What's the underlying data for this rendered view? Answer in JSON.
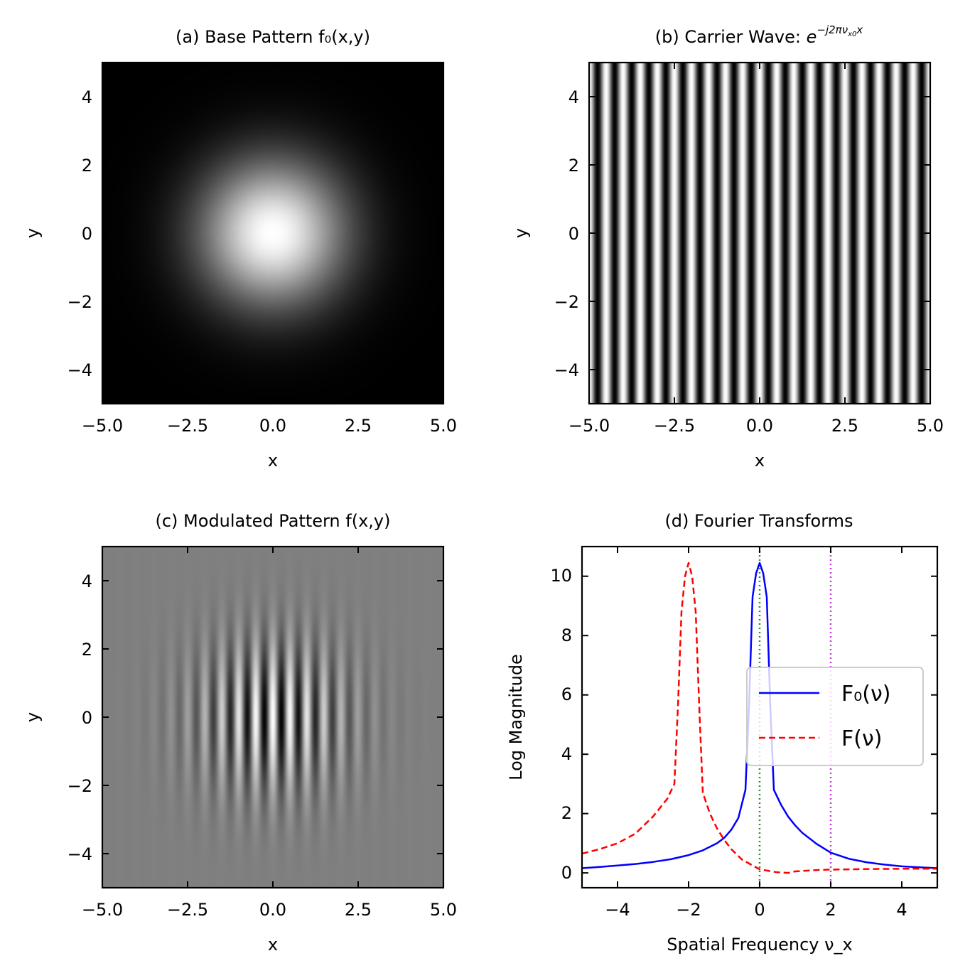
{
  "chart_data": [
    {
      "id": "a",
      "type": "heatmap",
      "title": "(a) Base Pattern f₀(x,y)",
      "xlabel": "x",
      "ylabel": "y",
      "xlim": [
        -5,
        5
      ],
      "ylim": [
        -5,
        5
      ],
      "x_ticks": [
        -5.0,
        -2.5,
        0.0,
        2.5,
        5.0
      ],
      "x_tick_labels": [
        "−5.0",
        "−2.5",
        "0.0",
        "2.5",
        "5.0"
      ],
      "y_ticks": [
        4,
        2,
        0,
        -2,
        -4
      ],
      "y_tick_labels": [
        "4",
        "2",
        "0",
        "−2",
        "−4"
      ],
      "colormap": "gray",
      "function": "gaussian",
      "sigma": 1.5
    },
    {
      "id": "b",
      "type": "heatmap",
      "title_prefix": "(b) Carrier Wave: ",
      "title_base": "e",
      "title_exponent": "−j2πν",
      "title_exponent_sub": "x0",
      "title_exponent_tail": "x",
      "xlabel": "x",
      "ylabel": "y",
      "xlim": [
        -5,
        5
      ],
      "ylim": [
        -5,
        5
      ],
      "x_ticks": [
        -5.0,
        -2.5,
        0.0,
        2.5,
        5.0
      ],
      "x_tick_labels": [
        "−5.0",
        "−2.5",
        "0.0",
        "2.5",
        "5.0"
      ],
      "y_ticks": [
        4,
        2,
        0,
        -2,
        -4
      ],
      "y_tick_labels": [
        "4",
        "2",
        "0",
        "−2",
        "−4"
      ],
      "colormap": "gray",
      "function": "cos(2πνₓ₀x)",
      "carrier_frequency": 2
    },
    {
      "id": "c",
      "type": "heatmap",
      "title": "(c) Modulated Pattern f(x,y)",
      "xlabel": "x",
      "ylabel": "y",
      "xlim": [
        -5,
        5
      ],
      "ylim": [
        -5,
        5
      ],
      "x_ticks": [
        -5.0,
        -2.5,
        0.0,
        2.5,
        5.0
      ],
      "x_tick_labels": [
        "−5.0",
        "−2.5",
        "0.0",
        "2.5",
        "5.0"
      ],
      "y_ticks": [
        4,
        2,
        0,
        -2,
        -4
      ],
      "y_tick_labels": [
        "4",
        "2",
        "0",
        "−2",
        "−4"
      ],
      "colormap": "gray",
      "function": "gaussian × carrier",
      "sigma": 1.5,
      "carrier_frequency": 2
    },
    {
      "id": "d",
      "type": "line",
      "title": "(d) Fourier Transforms",
      "xlabel": "Spatial Frequency ν_x",
      "ylabel": "Log Magnitude",
      "xlim": [
        -5,
        5
      ],
      "ylim": [
        -0.5,
        11
      ],
      "x_ticks": [
        -4,
        -2,
        0,
        2,
        4
      ],
      "x_tick_labels": [
        "−4",
        "−2",
        "0",
        "2",
        "4"
      ],
      "y_ticks": [
        10,
        8,
        6,
        4,
        2,
        0
      ],
      "y_tick_labels": [
        "10",
        "8",
        "6",
        "4",
        "2",
        "0"
      ],
      "series": [
        {
          "name": "F₀(ν)",
          "color": "#0000ff",
          "style": "solid",
          "x": [
            -5,
            -4.5,
            -4,
            -3.5,
            -3,
            -2.5,
            -2,
            -1.6,
            -1.2,
            -1,
            -0.8,
            -0.6,
            -0.4,
            -0.3,
            -0.2,
            -0.1,
            0,
            0.1,
            0.2,
            0.3,
            0.4,
            0.6,
            0.8,
            1,
            1.2,
            1.6,
            2,
            2.5,
            3,
            3.5,
            4,
            4.5,
            5
          ],
          "y": [
            0.16,
            0.2,
            0.25,
            0.3,
            0.37,
            0.46,
            0.6,
            0.76,
            1.0,
            1.18,
            1.45,
            1.85,
            2.8,
            5.6,
            9.3,
            10.1,
            10.45,
            10.1,
            9.3,
            5.6,
            2.8,
            2.3,
            1.9,
            1.6,
            1.35,
            0.98,
            0.68,
            0.48,
            0.36,
            0.28,
            0.22,
            0.19,
            0.16
          ]
        },
        {
          "name": "F(ν)",
          "color": "#ff0000",
          "style": "dashed",
          "x": [
            -5,
            -4.5,
            -4,
            -3.5,
            -3,
            -2.6,
            -2.4,
            -2.3,
            -2.2,
            -2.1,
            -2,
            -1.9,
            -1.8,
            -1.7,
            -1.6,
            -1.4,
            -1.2,
            -1,
            -0.8,
            -0.5,
            0,
            0.5,
            0.8,
            1,
            1.5,
            2,
            3,
            4,
            5
          ],
          "y": [
            0.65,
            0.8,
            1.0,
            1.32,
            1.9,
            2.5,
            3.0,
            5.6,
            8.8,
            10.0,
            10.45,
            10.0,
            8.8,
            5.6,
            2.7,
            2.0,
            1.5,
            1.12,
            0.8,
            0.45,
            0.12,
            0.02,
            0.0,
            0.05,
            0.09,
            0.11,
            0.13,
            0.14,
            0.14
          ]
        }
      ],
      "vlines": [
        {
          "x": 0,
          "color": "#2e8b2e",
          "style": "dotted"
        },
        {
          "x": 2,
          "color": "#c040d0",
          "style": "dotted"
        }
      ],
      "legend": {
        "position": "center-right",
        "entries": [
          "F₀(ν)",
          "F(ν)"
        ]
      }
    }
  ]
}
